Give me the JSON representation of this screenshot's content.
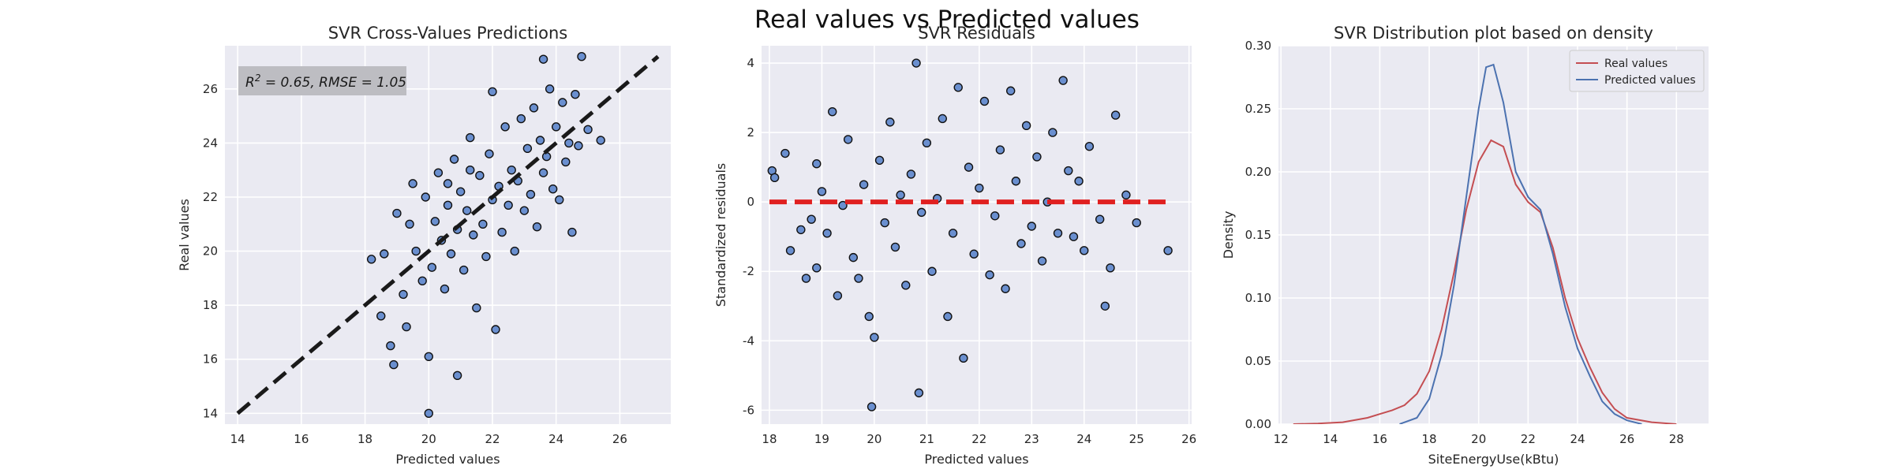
{
  "figure": {
    "suptitle": "Real values vs Predicted values"
  },
  "chart_data": [
    {
      "type": "scatter",
      "title": "SVR Cross-Values Predictions",
      "xlabel": "Predicted values",
      "ylabel": "Real values",
      "xlim": [
        13.6,
        27.6
      ],
      "ylim": [
        13.6,
        27.6
      ],
      "xticks": [
        14,
        16,
        18,
        20,
        22,
        24,
        26
      ],
      "yticks": [
        14,
        16,
        18,
        20,
        22,
        24,
        26
      ],
      "annotation": {
        "r2_label": "R",
        "r2_exp": "2",
        "rest": " = 0.65, RMSE = 1.05"
      },
      "reference_line": {
        "from": [
          14.0,
          14.0
        ],
        "to": [
          27.2,
          27.2
        ],
        "style": "dashed",
        "color": "#1a1a1a"
      },
      "point_color": "#6a8fcf",
      "points": [
        [
          18.2,
          19.7
        ],
        [
          18.5,
          17.6
        ],
        [
          18.6,
          19.9
        ],
        [
          18.8,
          16.5
        ],
        [
          18.9,
          15.8
        ],
        [
          19.0,
          21.4
        ],
        [
          19.2,
          18.4
        ],
        [
          19.3,
          17.2
        ],
        [
          19.5,
          22.5
        ],
        [
          19.6,
          20.0
        ],
        [
          19.8,
          18.9
        ],
        [
          19.9,
          22.0
        ],
        [
          20.0,
          14.0
        ],
        [
          20.0,
          16.1
        ],
        [
          20.1,
          19.4
        ],
        [
          20.2,
          21.1
        ],
        [
          20.3,
          22.9
        ],
        [
          20.4,
          20.4
        ],
        [
          20.5,
          18.6
        ],
        [
          20.6,
          21.7
        ],
        [
          20.7,
          19.9
        ],
        [
          20.8,
          23.4
        ],
        [
          20.9,
          15.4
        ],
        [
          20.9,
          20.8
        ],
        [
          21.0,
          22.2
        ],
        [
          21.1,
          19.3
        ],
        [
          21.2,
          21.5
        ],
        [
          21.3,
          24.2
        ],
        [
          21.4,
          20.6
        ],
        [
          21.5,
          17.9
        ],
        [
          21.6,
          22.8
        ],
        [
          21.7,
          21.0
        ],
        [
          21.8,
          19.8
        ],
        [
          21.9,
          23.6
        ],
        [
          22.0,
          21.9
        ],
        [
          22.1,
          17.1
        ],
        [
          22.2,
          22.4
        ],
        [
          22.3,
          20.7
        ],
        [
          22.4,
          24.6
        ],
        [
          22.5,
          21.7
        ],
        [
          22.6,
          23.0
        ],
        [
          22.7,
          20.0
        ],
        [
          22.8,
          22.6
        ],
        [
          22.9,
          24.9
        ],
        [
          23.0,
          21.5
        ],
        [
          23.1,
          23.8
        ],
        [
          23.2,
          22.1
        ],
        [
          23.3,
          25.3
        ],
        [
          23.4,
          20.9
        ],
        [
          23.5,
          24.1
        ],
        [
          23.6,
          22.9
        ],
        [
          23.7,
          23.5
        ],
        [
          23.8,
          26.0
        ],
        [
          23.9,
          22.3
        ],
        [
          24.0,
          24.6
        ],
        [
          24.1,
          21.9
        ],
        [
          24.2,
          25.5
        ],
        [
          24.3,
          23.3
        ],
        [
          24.4,
          24.0
        ],
        [
          24.5,
          20.7
        ],
        [
          24.6,
          25.8
        ],
        [
          24.7,
          23.9
        ],
        [
          24.8,
          27.2
        ],
        [
          25.0,
          24.5
        ],
        [
          25.4,
          24.1
        ],
        [
          23.6,
          27.1
        ],
        [
          22.0,
          25.9
        ],
        [
          20.6,
          22.5
        ],
        [
          21.3,
          23.0
        ],
        [
          19.4,
          21.0
        ]
      ]
    },
    {
      "type": "scatter",
      "title": "SVR Residuals",
      "xlabel": "Predicted values",
      "ylabel": "Standardized residuals",
      "xlim": [
        17.85,
        26.05
      ],
      "ylim": [
        -6.4,
        4.5
      ],
      "xticks": [
        18,
        19,
        20,
        21,
        22,
        23,
        24,
        25,
        26
      ],
      "yticks": [
        -6,
        -4,
        -2,
        0,
        2,
        4
      ],
      "reference_line": {
        "y": 0,
        "x_from": 18.0,
        "x_to": 25.6,
        "style": "dashed",
        "color": "#e02020"
      },
      "point_color": "#6a8fcf",
      "points": [
        [
          18.05,
          0.9
        ],
        [
          18.1,
          0.7
        ],
        [
          18.3,
          1.4
        ],
        [
          18.4,
          -1.4
        ],
        [
          18.6,
          -0.8
        ],
        [
          18.7,
          -2.2
        ],
        [
          18.8,
          -0.5
        ],
        [
          18.9,
          -1.9
        ],
        [
          18.9,
          1.1
        ],
        [
          19.0,
          0.3
        ],
        [
          19.1,
          -0.9
        ],
        [
          19.2,
          2.6
        ],
        [
          19.3,
          -2.7
        ],
        [
          19.4,
          -0.1
        ],
        [
          19.5,
          1.8
        ],
        [
          19.6,
          -1.6
        ],
        [
          19.7,
          -2.2
        ],
        [
          19.8,
          0.5
        ],
        [
          19.9,
          -3.3
        ],
        [
          19.95,
          -5.9
        ],
        [
          20.0,
          -3.9
        ],
        [
          20.1,
          1.2
        ],
        [
          20.2,
          -0.6
        ],
        [
          20.3,
          2.3
        ],
        [
          20.4,
          -1.3
        ],
        [
          20.5,
          0.2
        ],
        [
          20.6,
          -2.4
        ],
        [
          20.7,
          0.8
        ],
        [
          20.8,
          4.0
        ],
        [
          20.85,
          -5.5
        ],
        [
          20.9,
          -0.3
        ],
        [
          21.0,
          1.7
        ],
        [
          21.1,
          -2.0
        ],
        [
          21.2,
          0.1
        ],
        [
          21.3,
          2.4
        ],
        [
          21.4,
          -3.3
        ],
        [
          21.5,
          -0.9
        ],
        [
          21.6,
          3.3
        ],
        [
          21.7,
          -4.5
        ],
        [
          21.8,
          1.0
        ],
        [
          21.9,
          -1.5
        ],
        [
          22.0,
          0.4
        ],
        [
          22.1,
          2.9
        ],
        [
          22.2,
          -2.1
        ],
        [
          22.3,
          -0.4
        ],
        [
          22.4,
          1.5
        ],
        [
          22.5,
          -2.5
        ],
        [
          22.6,
          3.2
        ],
        [
          22.7,
          0.6
        ],
        [
          22.8,
          -1.2
        ],
        [
          22.9,
          2.2
        ],
        [
          23.0,
          -0.7
        ],
        [
          23.1,
          1.3
        ],
        [
          23.2,
          -1.7
        ],
        [
          23.3,
          0.0
        ],
        [
          23.4,
          2.0
        ],
        [
          23.5,
          -0.9
        ],
        [
          23.6,
          3.5
        ],
        [
          23.7,
          0.9
        ],
        [
          23.8,
          -1.0
        ],
        [
          23.9,
          0.6
        ],
        [
          24.0,
          -1.4
        ],
        [
          24.1,
          1.6
        ],
        [
          24.3,
          -0.5
        ],
        [
          24.4,
          -3.0
        ],
        [
          24.5,
          -1.9
        ],
        [
          24.6,
          2.5
        ],
        [
          24.8,
          0.2
        ],
        [
          25.0,
          -0.6
        ],
        [
          25.6,
          -1.4
        ]
      ]
    },
    {
      "type": "line",
      "title": "SVR Distribution plot based on density",
      "xlabel": "SiteEnergyUse(kBtu)",
      "ylabel": "Density",
      "xlim": [
        11.9,
        29.3
      ],
      "ylim": [
        0,
        0.3
      ],
      "xticks": [
        12,
        14,
        16,
        18,
        20,
        22,
        24,
        26,
        28
      ],
      "yticks": [
        0.0,
        0.05,
        0.1,
        0.15,
        0.2,
        0.25,
        0.3
      ],
      "legend_position": "top-right",
      "series": [
        {
          "name": "Real values",
          "color": "#c44e52",
          "x": [
            12.5,
            13.5,
            14.5,
            15.5,
            16.0,
            16.5,
            17.0,
            17.5,
            18.0,
            18.5,
            19.0,
            19.5,
            20.0,
            20.5,
            21.0,
            21.5,
            22.0,
            22.5,
            23.0,
            23.5,
            24.0,
            24.5,
            25.0,
            25.5,
            26.0,
            27.0,
            28.0
          ],
          "y": [
            0.0,
            0.0005,
            0.0015,
            0.005,
            0.008,
            0.011,
            0.015,
            0.024,
            0.042,
            0.075,
            0.12,
            0.17,
            0.208,
            0.225,
            0.22,
            0.19,
            0.176,
            0.168,
            0.14,
            0.1,
            0.068,
            0.045,
            0.025,
            0.012,
            0.005,
            0.0015,
            0.0
          ]
        },
        {
          "name": "Predicted values",
          "color": "#4c72b0",
          "x": [
            16.8,
            17.5,
            18.0,
            18.5,
            19.0,
            19.5,
            20.0,
            20.3,
            20.6,
            21.0,
            21.5,
            22.0,
            22.5,
            23.0,
            23.5,
            24.0,
            24.5,
            25.0,
            25.5,
            26.0,
            26.6
          ],
          "y": [
            0.0,
            0.005,
            0.02,
            0.055,
            0.11,
            0.18,
            0.25,
            0.283,
            0.285,
            0.255,
            0.2,
            0.18,
            0.17,
            0.135,
            0.093,
            0.06,
            0.038,
            0.018,
            0.008,
            0.003,
            0.0
          ]
        }
      ]
    }
  ]
}
